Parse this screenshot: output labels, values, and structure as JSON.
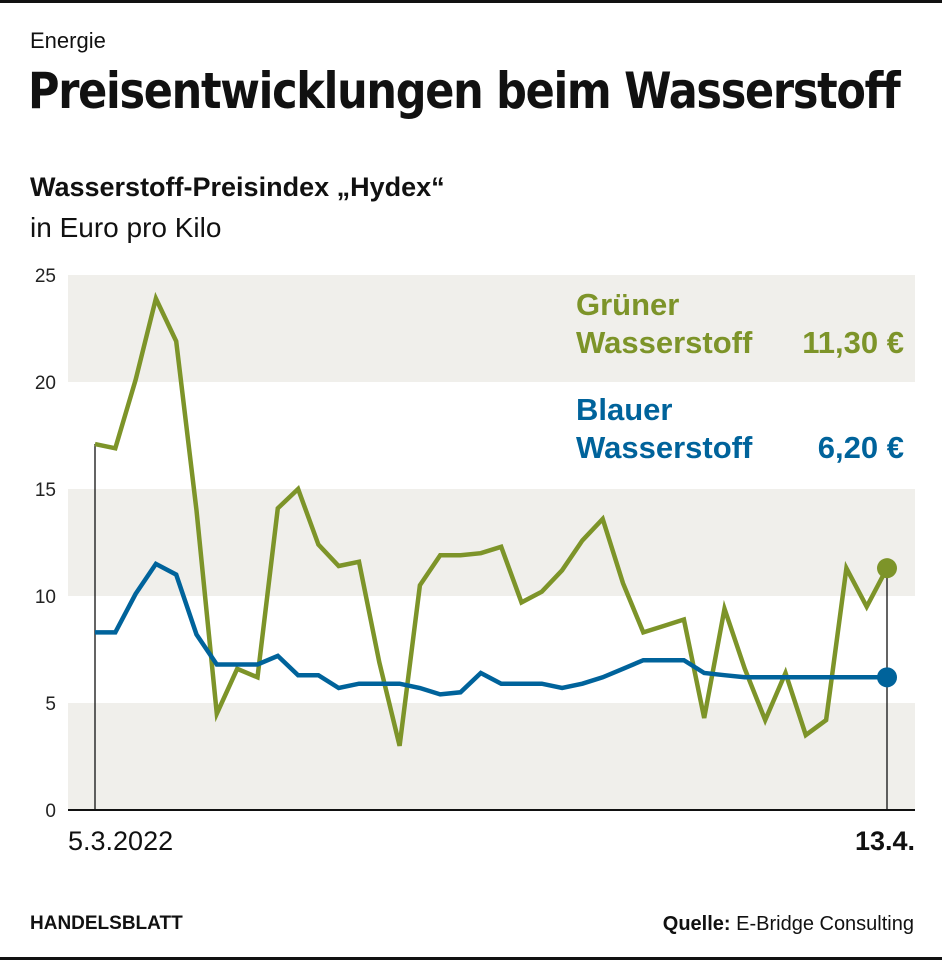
{
  "header": {
    "kicker": "Energie",
    "title": "Preisentwicklungen beim Wasserstoff"
  },
  "chart_data": {
    "type": "line",
    "title": "Wasserstoff-Preisindex „Hydex“",
    "subtitle": "in Euro pro Kilo",
    "ylim": [
      0,
      25
    ],
    "yticks": [
      0,
      5,
      10,
      15,
      20,
      25
    ],
    "ytick_labels": [
      "0",
      "5",
      "10",
      "15",
      "20",
      "25"
    ],
    "x_start_label": "5.3.2022",
    "x_end_label": "13.4.",
    "x": [
      "2022-03-05",
      "2022-03-06",
      "2022-03-07",
      "2022-03-08",
      "2022-03-09",
      "2022-03-10",
      "2022-03-11",
      "2022-03-12",
      "2022-03-13",
      "2022-03-14",
      "2022-03-15",
      "2022-03-16",
      "2022-03-17",
      "2022-03-18",
      "2022-03-19",
      "2022-03-20",
      "2022-03-21",
      "2022-03-22",
      "2022-03-23",
      "2022-03-24",
      "2022-03-25",
      "2022-03-26",
      "2022-03-27",
      "2022-03-28",
      "2022-03-29",
      "2022-03-30",
      "2022-03-31",
      "2022-04-01",
      "2022-04-02",
      "2022-04-03",
      "2022-04-04",
      "2022-04-05",
      "2022-04-06",
      "2022-04-07",
      "2022-04-08",
      "2022-04-09",
      "2022-04-10",
      "2022-04-11",
      "2022-04-12",
      "2022-04-13"
    ],
    "grid": "alternating horizontal bands",
    "series": [
      {
        "name": "Grüner Wasserstoff",
        "name_line1": "Grüner",
        "name_line2": "Wasserstoff",
        "last_label": "11,30 €",
        "color": "#7d9429",
        "values": [
          17.1,
          16.9,
          20.1,
          23.9,
          21.9,
          14.0,
          4.5,
          6.6,
          6.2,
          14.1,
          15.0,
          12.4,
          11.4,
          11.6,
          6.9,
          3.0,
          10.5,
          11.9,
          11.9,
          12.0,
          12.3,
          9.7,
          10.2,
          11.2,
          12.6,
          13.6,
          10.6,
          8.3,
          8.6,
          8.9,
          4.3,
          9.4,
          6.6,
          4.2,
          6.4,
          3.5,
          4.2,
          11.3,
          9.5,
          11.3
        ]
      },
      {
        "name": "Blauer Wasserstoff",
        "name_line1": "Blauer",
        "name_line2": "Wasserstoff",
        "last_label": "6,20 €",
        "color": "#00639b",
        "values": [
          8.3,
          8.3,
          10.1,
          11.5,
          11.0,
          8.2,
          6.8,
          6.8,
          6.8,
          7.2,
          6.3,
          6.3,
          5.7,
          5.9,
          5.9,
          5.9,
          5.7,
          5.4,
          5.5,
          6.4,
          5.9,
          5.9,
          5.9,
          5.7,
          5.9,
          6.2,
          6.6,
          7.0,
          7.0,
          7.0,
          6.4,
          6.3,
          6.2,
          6.2,
          6.2,
          6.2,
          6.2,
          6.2,
          6.2,
          6.2
        ]
      }
    ],
    "legend": "top-right, inline labels"
  },
  "colors": {
    "band": "#f0efeb",
    "axis": "#111111"
  },
  "footer": {
    "brand": "HANDELSBLATT",
    "source_label": "Quelle:",
    "source": "E-Bridge Consulting"
  }
}
